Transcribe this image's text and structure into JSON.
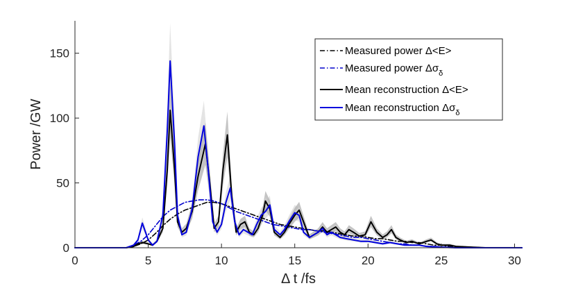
{
  "chart_data": {
    "type": "line",
    "title": "",
    "xlabel": "Δ t /fs",
    "ylabel": "Power /GW",
    "xlim": [
      0,
      30.5
    ],
    "ylim": [
      0,
      175
    ],
    "xticks": [
      0,
      5,
      10,
      15,
      20,
      25,
      30
    ],
    "yticks": [
      0,
      50,
      100,
      150
    ],
    "xtick_labels": [
      "0",
      "5",
      "10",
      "15",
      "20",
      "25",
      "30"
    ],
    "ytick_labels": [
      "0",
      "50",
      "100",
      "150"
    ],
    "legend_position": "top-right",
    "series": [
      {
        "name": "Measured power Δ<E>",
        "legend_label": "Measured power Δ<E>",
        "color": "#000000",
        "style": "dashdot",
        "x": [
          0,
          3.5,
          4.0,
          4.5,
          5.0,
          5.5,
          6.0,
          6.5,
          7.0,
          7.5,
          8.0,
          8.5,
          9.0,
          9.5,
          10.0,
          10.5,
          11.0,
          11.5,
          12.0,
          12.5,
          13.0,
          13.5,
          14.0,
          14.5,
          15.0,
          15.5,
          16.0,
          16.5,
          17.0,
          17.5,
          18.0,
          18.5,
          19.0,
          19.5,
          20.0,
          20.5,
          21.0,
          21.5,
          22.0,
          22.5,
          23.0,
          23.5,
          24.0,
          24.5,
          25.0,
          25.5,
          26.0,
          27.0,
          28.0,
          30.5
        ],
        "y": [
          0,
          0,
          1,
          3,
          6,
          11,
          17,
          22,
          26,
          29,
          31,
          33,
          35,
          35,
          34,
          32,
          30,
          28,
          26,
          24,
          22,
          20,
          18,
          17,
          16,
          15,
          14,
          13,
          13,
          12,
          11,
          10,
          9,
          9,
          8,
          7,
          7,
          6,
          5,
          5,
          4,
          4,
          3,
          2,
          2,
          1,
          1,
          0.5,
          0,
          0
        ]
      },
      {
        "name": "Measured power Δσδ",
        "legend_label": "Measured power Δσ",
        "legend_subscript": "δ",
        "color": "#0000cc",
        "style": "dashdot",
        "x": [
          0,
          3.5,
          4.0,
          4.5,
          5.0,
          5.5,
          6.0,
          6.5,
          7.0,
          7.5,
          8.0,
          8.5,
          9.0,
          9.5,
          10.0,
          10.5,
          11.0,
          11.5,
          12.0,
          12.5,
          13.0,
          13.5,
          14.0,
          14.5,
          15.0,
          15.5,
          16.0,
          16.5,
          17.0,
          17.5,
          18.0,
          18.5,
          19.0,
          19.5,
          20.0,
          20.5,
          21.0,
          21.5,
          22.0,
          22.5,
          23.0,
          23.5,
          24.0,
          24.5,
          25.0,
          26.0,
          27.0,
          30.5
        ],
        "y": [
          0,
          0,
          2,
          5,
          10,
          17,
          24,
          29,
          32,
          35,
          36,
          37,
          37,
          36,
          34,
          31,
          28,
          26,
          24,
          22,
          20,
          18,
          17,
          16,
          15,
          14,
          14,
          13,
          12,
          11,
          10,
          9,
          8,
          8,
          7,
          6,
          5,
          4,
          3,
          3,
          2,
          2,
          1,
          1,
          0.5,
          0,
          0,
          0
        ]
      },
      {
        "name": "Mean reconstruction Δ<E>",
        "legend_label": "Mean reconstruction Δ<E>",
        "color": "#000000",
        "style": "solid",
        "x": [
          0,
          3.5,
          4.0,
          4.3,
          4.6,
          5.0,
          5.3,
          5.6,
          6.0,
          6.3,
          6.5,
          6.8,
          7.0,
          7.3,
          7.6,
          8.0,
          8.4,
          8.9,
          9.2,
          9.5,
          9.8,
          10.1,
          10.4,
          10.7,
          11.0,
          11.3,
          11.6,
          11.9,
          12.2,
          12.5,
          12.8,
          13.0,
          13.3,
          13.6,
          14.0,
          14.3,
          14.6,
          15.0,
          15.3,
          15.6,
          16.0,
          16.3,
          16.6,
          16.9,
          17.2,
          17.5,
          17.8,
          18.1,
          18.4,
          18.7,
          19.0,
          19.4,
          19.8,
          20.2,
          20.6,
          21.0,
          21.3,
          21.6,
          21.9,
          22.2,
          22.6,
          23.0,
          23.5,
          24.0,
          24.3,
          24.7,
          25.0,
          25.6,
          26.0,
          27.0,
          28.0,
          30.5
        ],
        "y": [
          0,
          0,
          1,
          3,
          4,
          3,
          2,
          5,
          15,
          60,
          106,
          60,
          20,
          12,
          15,
          28,
          55,
          80,
          50,
          15,
          20,
          60,
          87,
          40,
          12,
          18,
          20,
          12,
          10,
          15,
          25,
          36,
          30,
          12,
          8,
          12,
          18,
          25,
          29,
          20,
          8,
          10,
          12,
          16,
          12,
          14,
          16,
          12,
          10,
          14,
          12,
          9,
          10,
          20,
          12,
          8,
          10,
          14,
          8,
          6,
          4,
          5,
          3,
          5,
          6,
          3,
          2,
          2,
          1,
          0.5,
          0,
          0
        ]
      },
      {
        "name": "Mean reconstruction Δσδ",
        "legend_label": "Mean reconstruction Δσ",
        "legend_subscript": "δ",
        "color": "#0000dd",
        "style": "solid",
        "x": [
          0,
          3.5,
          4.0,
          4.3,
          4.6,
          5.0,
          5.3,
          5.6,
          6.0,
          6.3,
          6.5,
          6.8,
          7.0,
          7.3,
          7.6,
          8.0,
          8.4,
          8.8,
          9.1,
          9.4,
          9.7,
          10.0,
          10.3,
          10.6,
          10.9,
          11.2,
          11.5,
          11.8,
          12.1,
          12.4,
          12.7,
          13.0,
          13.3,
          13.6,
          14.0,
          14.3,
          14.6,
          15.0,
          15.3,
          15.6,
          16.0,
          16.3,
          16.6,
          16.9,
          17.2,
          17.5,
          17.8,
          18.1,
          18.5,
          19.0,
          19.5,
          20.0,
          20.5,
          21.0,
          21.5,
          22.0,
          22.5,
          23.0,
          23.5,
          24.0,
          25.0,
          26.0,
          30.5
        ],
        "y": [
          0,
          0,
          2,
          6,
          19,
          6,
          2,
          5,
          25,
          90,
          144,
          80,
          25,
          10,
          12,
          30,
          70,
          94,
          60,
          20,
          12,
          18,
          35,
          46,
          20,
          10,
          14,
          12,
          10,
          18,
          25,
          28,
          33,
          14,
          10,
          14,
          20,
          27,
          25,
          12,
          8,
          10,
          12,
          15,
          10,
          12,
          10,
          8,
          7,
          6,
          5,
          5,
          4,
          3,
          4,
          3,
          2,
          2,
          2,
          1,
          0.5,
          0,
          0
        ]
      }
    ]
  }
}
